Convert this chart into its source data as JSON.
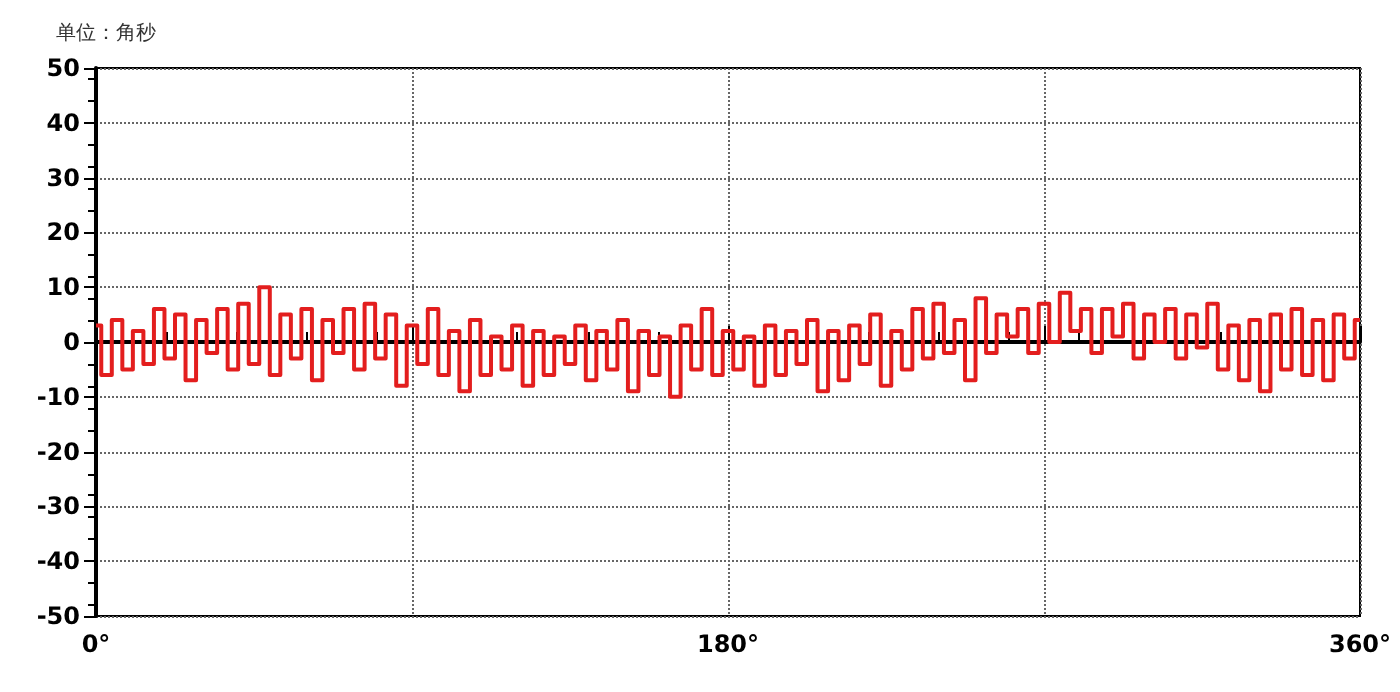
{
  "chart_data": {
    "type": "step",
    "ylabel": "单位：角秒",
    "x": [
      0,
      3,
      6,
      9,
      12,
      15,
      18,
      21,
      24,
      27,
      30,
      33,
      36,
      39,
      42,
      45,
      48,
      51,
      54,
      57,
      60,
      63,
      66,
      69,
      72,
      75,
      78,
      81,
      84,
      87,
      90,
      93,
      96,
      99,
      102,
      105,
      108,
      111,
      114,
      117,
      120,
      123,
      126,
      129,
      132,
      135,
      138,
      141,
      144,
      147,
      150,
      153,
      156,
      159,
      162,
      165,
      168,
      171,
      174,
      177,
      180,
      183,
      186,
      189,
      192,
      195,
      198,
      201,
      204,
      207,
      210,
      213,
      216,
      219,
      222,
      225,
      228,
      231,
      234,
      237,
      240,
      243,
      246,
      249,
      252,
      255,
      258,
      261,
      264,
      267,
      270,
      273,
      276,
      279,
      282,
      285,
      288,
      291,
      294,
      297,
      300,
      303,
      306,
      309,
      312,
      315,
      318,
      321,
      324,
      327,
      330,
      333,
      336,
      339,
      342,
      345,
      348,
      351,
      354,
      357,
      360
    ],
    "series": [
      {
        "color": "#e31e1e",
        "values": [
          3,
          -6,
          4,
          -5,
          2,
          -4,
          6,
          -3,
          5,
          -7,
          4,
          -2,
          6,
          -5,
          7,
          -4,
          10,
          -6,
          5,
          -3,
          6,
          -7,
          4,
          -2,
          6,
          -5,
          7,
          -3,
          5,
          -8,
          3,
          -4,
          6,
          -6,
          2,
          -9,
          4,
          -6,
          1,
          -5,
          3,
          -8,
          2,
          -6,
          1,
          -4,
          3,
          -7,
          2,
          -5,
          4,
          -9,
          2,
          -6,
          1,
          -10,
          3,
          -5,
          6,
          -6,
          2,
          -5,
          1,
          -8,
          3,
          -6,
          2,
          -4,
          4,
          -9,
          2,
          -7,
          3,
          -4,
          5,
          -8,
          2,
          -5,
          6,
          -3,
          7,
          -2,
          4,
          -7,
          8,
          -2,
          5,
          1,
          6,
          -2,
          7,
          0,
          9,
          2,
          6,
          -2,
          6,
          1,
          7,
          -3,
          5,
          0,
          6,
          -3,
          5,
          -1,
          7,
          -5,
          3,
          -7,
          4,
          -9,
          5,
          -5,
          6,
          -6,
          4,
          -7,
          5,
          -3,
          4
        ]
      }
    ],
    "xlim": [
      0,
      360
    ],
    "xticks": [
      {
        "value": 0,
        "label": "0°"
      },
      {
        "value": 90,
        "label": null
      },
      {
        "value": 180,
        "label": "180°"
      },
      {
        "value": 270,
        "label": null
      },
      {
        "value": 360,
        "label": "360°"
      }
    ],
    "ylim": [
      -50,
      50
    ],
    "yticks": [
      -50,
      -40,
      -30,
      -20,
      -10,
      0,
      10,
      20,
      30,
      40,
      50
    ],
    "grid": true,
    "marker": "none",
    "line_style": "solid"
  }
}
